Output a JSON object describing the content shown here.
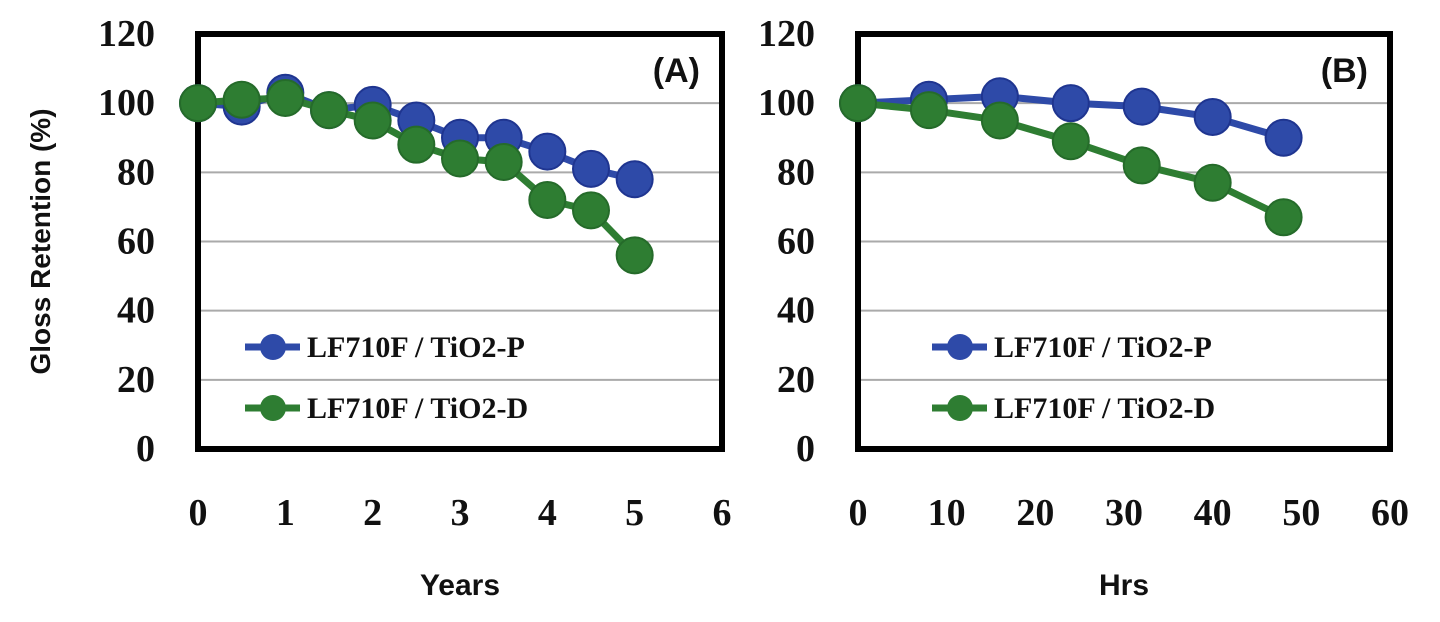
{
  "chart_data": [
    {
      "type": "line",
      "panel_label": "(A)",
      "xlabel": "Years",
      "ylabel": "Gloss Retention (%)",
      "xlim": [
        0,
        6
      ],
      "ylim": [
        0,
        120
      ],
      "xticks": [
        "0",
        "1",
        "2",
        "3",
        "4",
        "5",
        "6"
      ],
      "yticks": [
        "0",
        "20",
        "40",
        "60",
        "80",
        "100",
        "120"
      ],
      "grid": "horizontal",
      "legend_placement": "bottom-left",
      "x": [
        0,
        0.5,
        1,
        1.5,
        2,
        2.5,
        3,
        3.5,
        4,
        4.5,
        5
      ],
      "series": [
        {
          "name": "LF710F / TiO2-P",
          "color": "#2e4aa8",
          "values": [
            100,
            99,
            103,
            98,
            99.5,
            95,
            90,
            90,
            86,
            81,
            78
          ]
        },
        {
          "name": "LF710F / TiO2-D",
          "color": "#2e7d32",
          "values": [
            100,
            101,
            101.5,
            98,
            95,
            88,
            84,
            83,
            72,
            69,
            56
          ]
        }
      ]
    },
    {
      "type": "line",
      "panel_label": "(B)",
      "xlabel": "Hrs",
      "ylabel": "",
      "xlim": [
        0,
        60
      ],
      "ylim": [
        0,
        120
      ],
      "xticks": [
        "0",
        "10",
        "20",
        "30",
        "40",
        "50",
        "60"
      ],
      "yticks": [
        "0",
        "20",
        "40",
        "60",
        "80",
        "100",
        "120"
      ],
      "grid": "horizontal",
      "legend_placement": "bottom-left",
      "x": [
        0,
        8,
        16,
        24,
        32,
        40,
        48
      ],
      "series": [
        {
          "name": "LF710F / TiO2-P",
          "color": "#2e4aa8",
          "values": [
            100,
            101,
            102,
            100,
            99,
            96,
            90
          ]
        },
        {
          "name": "LF710F / TiO2-D",
          "color": "#2e7d32",
          "values": [
            100,
            98,
            95,
            89,
            82,
            77,
            67
          ]
        }
      ]
    }
  ]
}
